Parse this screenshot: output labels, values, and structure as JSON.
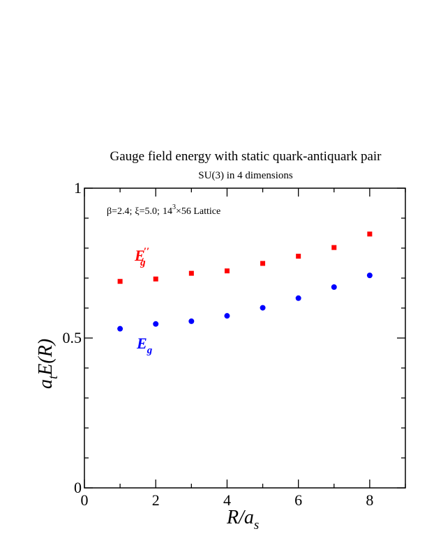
{
  "chart_data": {
    "type": "scatter",
    "title": "Gauge field energy with static quark-antiquark pair",
    "subtitle": "SU(3) in 4 dimensions",
    "annotation": {
      "beta": "β=2.4;",
      "xi": "ξ=5.0;",
      "lattice_base": "14",
      "lattice_exp": "3",
      "lattice_rest": "×56 Lattice"
    },
    "xlabel": {
      "main": "R/a",
      "sub": "s"
    },
    "ylabel": {
      "pre": "a",
      "sub": "t",
      "post": "E(R)"
    },
    "xlim": [
      0,
      9
    ],
    "ylim": [
      0,
      1
    ],
    "x_ticks": [
      0,
      2,
      4,
      6,
      8
    ],
    "x_tick_labels": [
      "0",
      "2",
      "4",
      "6",
      "8"
    ],
    "y_ticks": [
      0,
      0.5,
      1
    ],
    "y_tick_labels": [
      "0",
      "0.5",
      "1"
    ],
    "grid": false,
    "series": [
      {
        "name": "E''_g",
        "label_main": "E",
        "label_sub": "g",
        "label_sup": "′′",
        "color": "#ff0000",
        "marker": "square",
        "x": [
          1,
          2,
          3,
          4,
          5,
          6,
          7,
          8
        ],
        "y": [
          0.689,
          0.697,
          0.716,
          0.724,
          0.749,
          0.773,
          0.802,
          0.847
        ]
      },
      {
        "name": "E_g",
        "label_main": "E",
        "label_sub": "g",
        "label_sup": "",
        "color": "#0000ff",
        "marker": "circle",
        "x": [
          1,
          2,
          3,
          4,
          5,
          6,
          7,
          8
        ],
        "y": [
          0.531,
          0.547,
          0.556,
          0.574,
          0.601,
          0.633,
          0.67,
          0.709
        ]
      }
    ]
  }
}
